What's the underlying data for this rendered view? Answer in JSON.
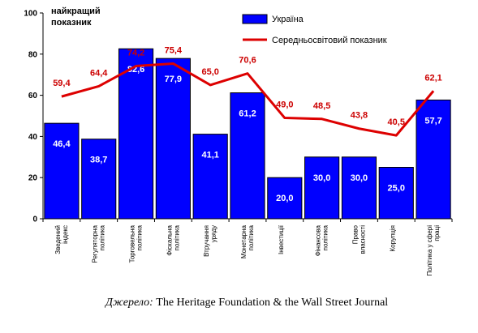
{
  "chart_data": {
    "type": "bar",
    "ylabel": "найкращий показник",
    "ylim": [
      0,
      100
    ],
    "yticks": [
      0,
      20,
      40,
      60,
      80,
      100
    ],
    "categories": [
      "Зведений індекс",
      "Регуляторна політика",
      "Торговельна політика",
      "Фіскальна політика",
      "Втручання уряду",
      "Монетарна політика",
      "Інвестиції",
      "Фінансова політика",
      "Право власності",
      "Корупція",
      "Політика у сфері праці"
    ],
    "series": [
      {
        "name": "Україна",
        "type": "bar",
        "color": "#0000ff",
        "values": [
          46.4,
          38.7,
          82.6,
          77.9,
          41.1,
          61.2,
          20.0,
          30.0,
          30.0,
          25.0,
          57.7
        ],
        "labels": [
          "46,4",
          "38,7",
          "82,6",
          "77,9",
          "41,1",
          "61,2",
          "20,0",
          "30,0",
          "30,0",
          "25,0",
          "57,7"
        ]
      },
      {
        "name": "Середньосвітовий показник",
        "type": "line",
        "color": "#dd0000",
        "values": [
          59.4,
          64.4,
          74.2,
          75.4,
          65.0,
          70.6,
          49.0,
          48.5,
          43.8,
          40.5,
          62.1
        ],
        "labels": [
          "59,4",
          "64,4",
          "74,2",
          "75,4",
          "65,0",
          "70,6",
          "49,0",
          "48,5",
          "43,8",
          "40,5",
          "62,1"
        ]
      }
    ],
    "legend": "top-right",
    "grid": false
  },
  "source": {
    "label": "Джерело:",
    "text": "The Heritage Foundation & the Wall Street Journal"
  }
}
